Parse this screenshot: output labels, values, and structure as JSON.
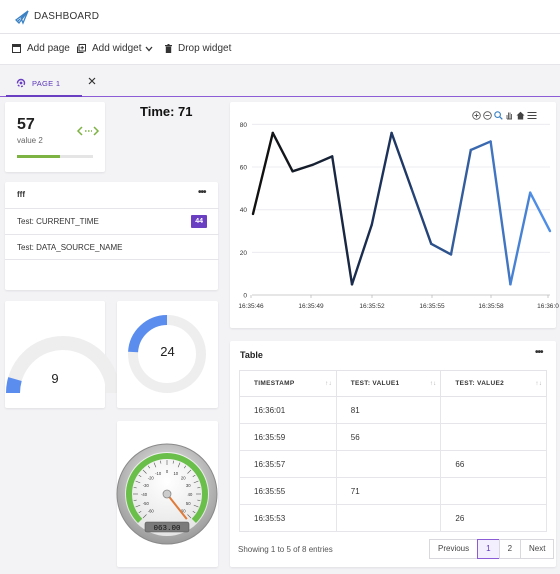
{
  "app": {
    "title": "DASHBOARD"
  },
  "toolbar": {
    "add_page": "Add page",
    "add_widget": "Add widget",
    "drop_widget": "Drop widget"
  },
  "tabs": [
    {
      "label": "PAGE 1"
    }
  ],
  "kpi": {
    "value": "57",
    "label": "value 2",
    "progress": 0.57
  },
  "time_label": "Time: 71",
  "list_widget": {
    "title": "fff",
    "rows": [
      {
        "label": "Test: CURRENT_TIME",
        "badge": "44"
      },
      {
        "label": "Test: DATA_SOURCE_NAME",
        "badge": ""
      }
    ]
  },
  "gauges": [
    {
      "value": "9",
      "fraction": 0.09
    },
    {
      "value": "24",
      "fraction": 0.24
    }
  ],
  "dial": {
    "readout": "063.00",
    "value": 63,
    "ticks": [
      "-10",
      "0",
      "10",
      "20",
      "30",
      "40",
      "50",
      "60",
      "-20",
      "-30",
      "-40",
      "-50",
      "-60"
    ]
  },
  "chart_data": {
    "type": "line",
    "x_ticks": [
      "16:35:46",
      "16:35:49",
      "16:35:52",
      "16:35:55",
      "16:35:58",
      "16:36:0"
    ],
    "y_ticks": [
      "0",
      "20",
      "40",
      "60",
      "80"
    ],
    "ylim": [
      0,
      83
    ],
    "values": [
      38,
      76,
      58,
      61,
      65,
      5,
      33,
      76,
      50,
      24,
      19,
      68,
      72,
      5,
      48,
      30
    ],
    "title": "",
    "xlabel": "",
    "ylabel": "",
    "colors": {
      "start": "#111111",
      "mid": "#1f3866",
      "end": "#4f8ee6"
    }
  },
  "table": {
    "title": "Table",
    "columns": [
      "TIMESTAMP",
      "TEST: VALUE1",
      "TEST: VALUE2"
    ],
    "rows": [
      [
        "16:36:01",
        "81",
        ""
      ],
      [
        "16:35:59",
        "56",
        ""
      ],
      [
        "16:35:57",
        "",
        "66"
      ],
      [
        "16:35:55",
        "71",
        ""
      ],
      [
        "16:35:53",
        "",
        "26"
      ]
    ],
    "footer": "Showing 1 to 5 of 8 entries",
    "pagination": {
      "previous": "Previous",
      "pages": [
        "1",
        "2"
      ],
      "next": "Next",
      "active": "1"
    }
  },
  "colors": {
    "accent": "#6b3fc2",
    "gauge_fill": "#5b8def",
    "gauge_track": "#eeeeee",
    "progress": "#7cb342"
  }
}
